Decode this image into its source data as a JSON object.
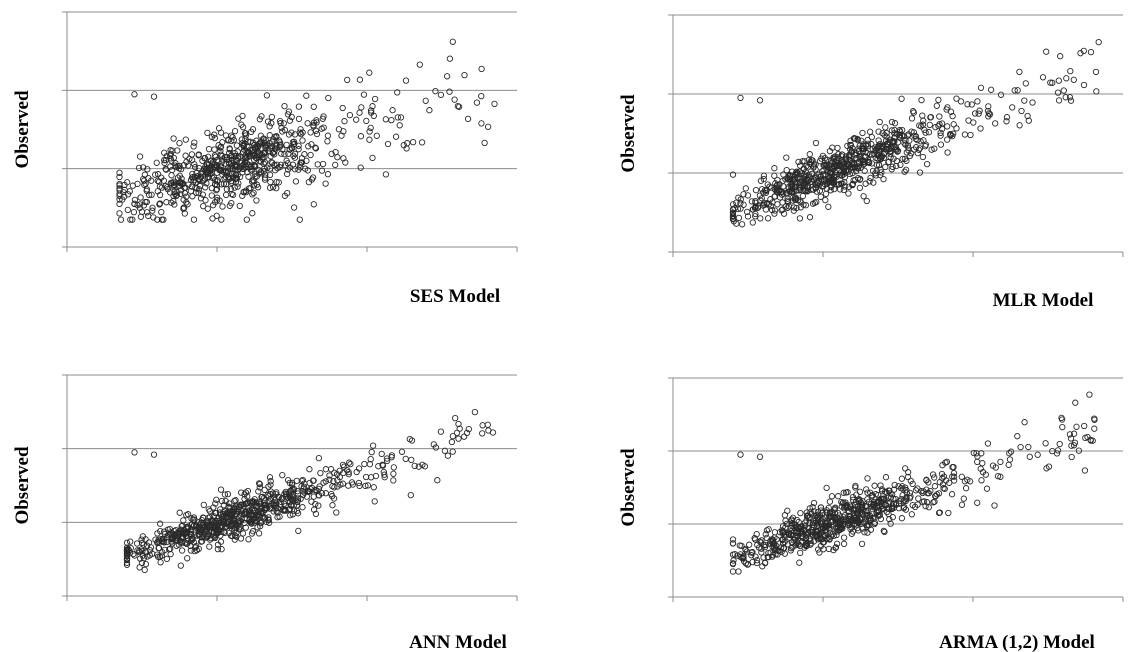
{
  "chart_data": [
    {
      "type": "scatter",
      "title": "",
      "xlabel": "SES Model",
      "ylabel": "Observed",
      "grid": "horizontal",
      "y_gridlines": 3,
      "x_ticks": 3,
      "series": [
        {
          "values": []
        }
      ],
      "shape": {
        "xmin": 0.35,
        "xmax": 2.85,
        "slope": 0.55,
        "noise": 0.32,
        "n": 720
      }
    },
    {
      "type": "scatter",
      "title": "",
      "xlabel": "MLR Model",
      "ylabel": "Observed",
      "grid": "horizontal",
      "y_gridlines": 3,
      "x_ticks": 3,
      "series": [
        {
          "values": []
        }
      ],
      "shape": {
        "xmin": 0.4,
        "xmax": 2.85,
        "slope": 0.75,
        "noise": 0.2,
        "n": 720
      }
    },
    {
      "type": "scatter",
      "title": "",
      "xlabel": "ANN Model",
      "ylabel": "Observed",
      "grid": "horizontal",
      "y_gridlines": 3,
      "x_ticks": 3,
      "series": [
        {
          "values": []
        }
      ],
      "shape": {
        "xmin": 0.4,
        "xmax": 2.85,
        "slope": 0.7,
        "noise": 0.18,
        "n": 720
      }
    },
    {
      "type": "scatter",
      "title": "",
      "xlabel": "ARMA (1,2) Model",
      "ylabel": "Observed",
      "grid": "horizontal",
      "y_gridlines": 3,
      "x_ticks": 3,
      "series": [
        {
          "values": []
        }
      ],
      "shape": {
        "xmin": 0.4,
        "xmax": 2.85,
        "slope": 0.7,
        "noise": 0.2,
        "n": 720
      }
    }
  ]
}
